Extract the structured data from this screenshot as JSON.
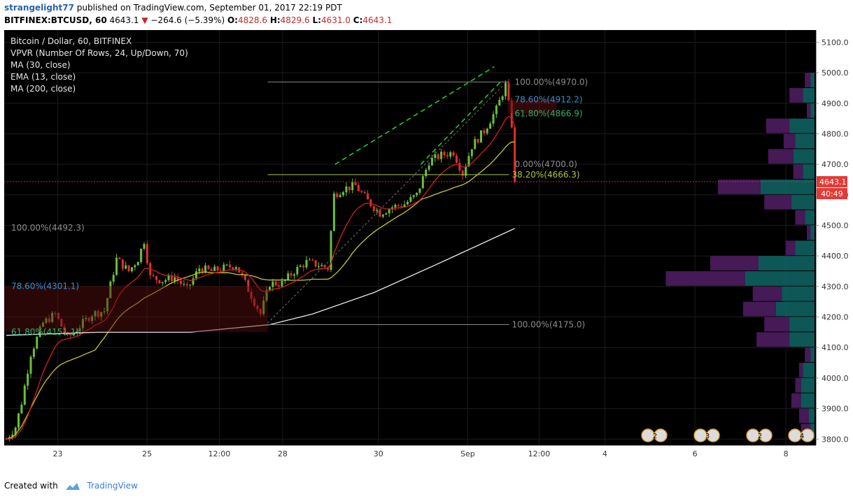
{
  "header": {
    "username": "strangelight77",
    "published_text": "published on TradingView.com, September 01, 2017 22:19 PDT",
    "symbol_line": "BITFINEX:BTCUSD, 60",
    "last_price": "4643.1",
    "change_arrow": "▼",
    "change": "−264.6 (−5.39%)",
    "o_label": "O:",
    "o_value": "4828.6",
    "h_label": "H:",
    "h_value": "4829.6",
    "l_label": "L:",
    "l_value": "4631.0",
    "c_label": "C:",
    "c_value": "4643.1"
  },
  "legend": [
    "Bitcoin / Dollar, 60, BITFINEX",
    "VPVR (Number Of Rows, 24, Up/Down, 70)",
    "MA (30, close)",
    "EMA (13, close)",
    "MA (200, close)"
  ],
  "colors": {
    "background": "#000000",
    "up": "#6bbf3a",
    "down": "#e03030",
    "ema": "#d02020",
    "ma30": "#c9c62a",
    "ma200": "#e8e8e8",
    "fib_yellow": "#a8c93a",
    "fib_blue": "#3b8fd0",
    "fib_green": "#2db36b",
    "fib_gray": "#8c8c8c",
    "trend_green": "#22cc22",
    "vp_up": "#0e5c5c",
    "vp_down": "#4a1a5c",
    "price_tag": "#e53935"
  },
  "chart_data": {
    "type": "candlestick",
    "ylim": [
      3780,
      5140
    ],
    "y_ticks": [
      3800,
      3900,
      4000,
      4100,
      4200,
      4300,
      4400,
      4500,
      4600,
      4700,
      4800,
      4900,
      5000,
      5100
    ],
    "x_labels": [
      "23",
      "25",
      "12:00",
      "28",
      "30",
      "Sep",
      "12:00",
      "4",
      "6",
      "8"
    ],
    "last_price_label": "4643.1",
    "countdown_label": "40:49",
    "price_path": [
      {
        "t": 0,
        "p": 3800
      },
      {
        "t": 3,
        "p": 3840
      },
      {
        "t": 5,
        "p": 3920
      },
      {
        "t": 8,
        "p": 4080
      },
      {
        "t": 12,
        "p": 4180
      },
      {
        "t": 16,
        "p": 4210
      },
      {
        "t": 20,
        "p": 4130
      },
      {
        "t": 24,
        "p": 4170
      },
      {
        "t": 28,
        "p": 4210
      },
      {
        "t": 32,
        "p": 4220
      },
      {
        "t": 36,
        "p": 4390
      },
      {
        "t": 40,
        "p": 4350
      },
      {
        "t": 43,
        "p": 4390
      },
      {
        "t": 45,
        "p": 4450
      },
      {
        "t": 47,
        "p": 4330
      },
      {
        "t": 51,
        "p": 4320
      },
      {
        "t": 55,
        "p": 4330
      },
      {
        "t": 59,
        "p": 4290
      },
      {
        "t": 63,
        "p": 4360
      },
      {
        "t": 67,
        "p": 4350
      },
      {
        "t": 71,
        "p": 4360
      },
      {
        "t": 75,
        "p": 4370
      },
      {
        "t": 79,
        "p": 4290
      },
      {
        "t": 83,
        "p": 4210
      },
      {
        "t": 86,
        "p": 4310
      },
      {
        "t": 90,
        "p": 4310
      },
      {
        "t": 94,
        "p": 4350
      },
      {
        "t": 98,
        "p": 4380
      },
      {
        "t": 102,
        "p": 4370
      },
      {
        "t": 105,
        "p": 4360
      },
      {
        "t": 107,
        "p": 4600
      },
      {
        "t": 110,
        "p": 4620
      },
      {
        "t": 114,
        "p": 4630
      },
      {
        "t": 118,
        "p": 4580
      },
      {
        "t": 122,
        "p": 4540
      },
      {
        "t": 126,
        "p": 4560
      },
      {
        "t": 130,
        "p": 4570
      },
      {
        "t": 134,
        "p": 4600
      },
      {
        "t": 138,
        "p": 4710
      },
      {
        "t": 142,
        "p": 4730
      },
      {
        "t": 146,
        "p": 4740
      },
      {
        "t": 149,
        "p": 4670
      },
      {
        "t": 152,
        "p": 4760
      },
      {
        "t": 156,
        "p": 4810
      },
      {
        "t": 160,
        "p": 4880
      },
      {
        "t": 163,
        "p": 4960
      },
      {
        "t": 165,
        "p": 4830
      },
      {
        "t": 166,
        "p": 4643
      }
    ],
    "moving_averages": [
      {
        "name": "EMA (13, close)",
        "color": "#d02020"
      },
      {
        "name": "MA (30, close)",
        "color": "#c9c62a"
      },
      {
        "name": "MA (200, close)",
        "color": "#e8e8e8",
        "points": [
          {
            "t": 0,
            "p": 4140
          },
          {
            "t": 30,
            "p": 4150
          },
          {
            "t": 60,
            "p": 4150
          },
          {
            "t": 86,
            "p": 4175
          },
          {
            "t": 100,
            "p": 4210
          },
          {
            "t": 120,
            "p": 4280
          },
          {
            "t": 140,
            "p": 4370
          },
          {
            "t": 166,
            "p": 4490
          }
        ]
      }
    ],
    "fib_levels": [
      {
        "label": "100.00%(4492.3)",
        "value": 4492.3,
        "color": "#8c8c8c"
      },
      {
        "label": "78.60%(4301.1)",
        "value": 4301.1,
        "color": "#3b8fd0"
      },
      {
        "label": "61.80%(4151.1)",
        "value": 4151.1,
        "color": "#2db36b"
      },
      {
        "label": "100.00%(4175.0)",
        "value": 4175.0,
        "color": "#8c8c8c"
      },
      {
        "label": "38.20%(4666.3)",
        "value": 4666.3,
        "color": "#a8c93a"
      },
      {
        "label": "0.00%(4700.0)",
        "value": 4700.0,
        "color": "#8c8c8c"
      },
      {
        "label": "61.80%(4866.9)",
        "value": 4866.9,
        "color": "#2db36b"
      },
      {
        "label": "78.60%(4912.2)",
        "value": 4912.2,
        "color": "#3b8fd0"
      },
      {
        "label": "100.00%(4970.0)",
        "value": 4970.0,
        "color": "#8c8c8c"
      }
    ],
    "volume_profile": [
      {
        "price": 3800,
        "up": 4,
        "down": 10
      },
      {
        "price": 3850,
        "up": 6,
        "down": 10
      },
      {
        "price": 3900,
        "up": 14,
        "down": 10
      },
      {
        "price": 3950,
        "up": 14,
        "down": 6
      },
      {
        "price": 4000,
        "up": 12,
        "down": 4
      },
      {
        "price": 4050,
        "up": 4,
        "down": 6
      },
      {
        "price": 4100,
        "up": 26,
        "down": 34
      },
      {
        "price": 4150,
        "up": 26,
        "down": 26
      },
      {
        "price": 4200,
        "up": 40,
        "down": 34
      },
      {
        "price": 4250,
        "up": 34,
        "down": 30
      },
      {
        "price": 4300,
        "up": 72,
        "down": 82
      },
      {
        "price": 4350,
        "up": 58,
        "down": 50
      },
      {
        "price": 4400,
        "up": 20,
        "down": 10
      },
      {
        "price": 4450,
        "up": 4,
        "down": 4
      },
      {
        "price": 4500,
        "up": 10,
        "down": 10
      },
      {
        "price": 4550,
        "up": 24,
        "down": 28
      },
      {
        "price": 4600,
        "up": 56,
        "down": 44
      },
      {
        "price": 4650,
        "up": 12,
        "down": 10
      },
      {
        "price": 4700,
        "up": 22,
        "down": 26
      },
      {
        "price": 4750,
        "up": 20,
        "down": 12
      },
      {
        "price": 4800,
        "up": 26,
        "down": 24
      },
      {
        "price": 4850,
        "up": 4,
        "down": 4
      },
      {
        "price": 4900,
        "up": 12,
        "down": 14
      },
      {
        "price": 4950,
        "up": 4,
        "down": 6
      }
    ],
    "event_badge_labels": [
      "2",
      "3",
      "2",
      "4",
      "2"
    ]
  },
  "footer": {
    "created_with": "Created with",
    "brand": "TradingView"
  }
}
